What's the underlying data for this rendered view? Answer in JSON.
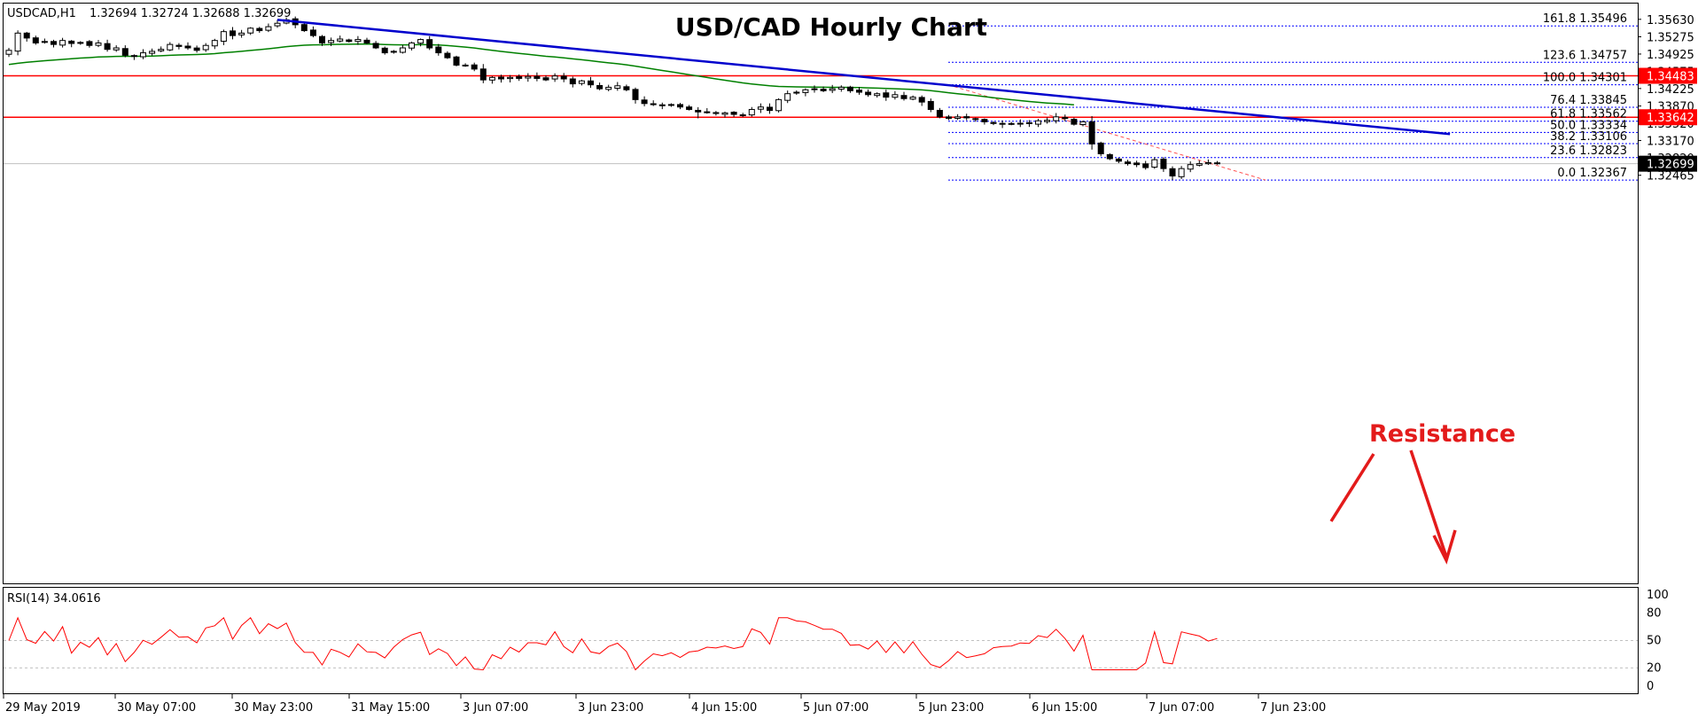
{
  "header": {
    "symbol": "USDCAD,H1",
    "ohlc": "1.32694 1.32724 1.32688 1.32699"
  },
  "chart_data": {
    "type": "candlestick",
    "title": "USD/CAD Hourly Chart",
    "price_axis": {
      "ylim": [
        1.2418,
        1.3595
      ],
      "tick_values": [
        1.3563,
        1.35275,
        1.34925,
        1.34575,
        1.34225,
        1.3387,
        1.3352,
        1.3317,
        1.3282,
        1.32465
      ],
      "tick_labels": [
        "1.35630",
        "1.35275",
        "1.34925",
        "1.34575",
        "1.34225",
        "1.33870",
        "1.33520",
        "1.33170",
        "1.32820",
        "1.32465"
      ]
    },
    "time_axis": {
      "labels": [
        "29 May 2019",
        "30 May 07:00",
        "30 May 23:00",
        "31 May 15:00",
        "3 Jun 07:00",
        "3 Jun 23:00",
        "4 Jun 15:00",
        "5 Jun 07:00",
        "5 Jun 23:00",
        "6 Jun 15:00",
        "7 Jun 07:00",
        "7 Jun 23:00"
      ]
    },
    "horizontal_levels": [
      {
        "value": 1.34483,
        "label": "1.34483",
        "color": "#ff0000"
      },
      {
        "value": 1.33642,
        "label": "1.33642",
        "color": "#ff0000"
      }
    ],
    "current_price": {
      "value": 1.32699,
      "label": "1.32699"
    },
    "fibonacci": [
      {
        "ratio": "161.8",
        "value": 1.35496,
        "label": "161.8 1.35496"
      },
      {
        "ratio": "123.6",
        "value": 1.34757,
        "label": "123.6 1.34757"
      },
      {
        "ratio": "100.0",
        "value": 1.34301,
        "label": "100.0 1.34301"
      },
      {
        "ratio": "76.4",
        "value": 1.33845,
        "label": "76.4 1.33845"
      },
      {
        "ratio": "61.8",
        "value": 1.33562,
        "label": "61.8 1.33562"
      },
      {
        "ratio": "50.0",
        "value": 1.33334,
        "label": "50.0 1.33334"
      },
      {
        "ratio": "38.2",
        "value": 1.33106,
        "label": "38.2 1.33106"
      },
      {
        "ratio": "23.6",
        "value": 1.32823,
        "label": "23.6 1.32823"
      },
      {
        "ratio": "0.0",
        "value": 1.32367,
        "label": "0.0 1.32367"
      }
    ],
    "close_series": [
      1.35,
      1.3535,
      1.3525,
      1.3515,
      1.3518,
      1.3512,
      1.352,
      1.3514,
      1.3516,
      1.351,
      1.3515,
      1.3502,
      1.3505,
      1.349,
      1.3488,
      1.3495,
      1.3498,
      1.3502,
      1.3512,
      1.3508,
      1.3505,
      1.35,
      1.351,
      1.352,
      1.3538,
      1.353,
      1.3535,
      1.3545,
      1.354,
      1.3548,
      1.3555,
      1.3562,
      1.3552,
      1.354,
      1.353,
      1.3515,
      1.352,
      1.3523,
      1.3518,
      1.3522,
      1.3515,
      1.3505,
      1.3495,
      1.3498,
      1.3505,
      1.3515,
      1.3522,
      1.3505,
      1.3495,
      1.3485,
      1.347,
      1.347,
      1.3462,
      1.344,
      1.3445,
      1.3442,
      1.3445,
      1.3443,
      1.3447,
      1.3443,
      1.344,
      1.3448,
      1.3442,
      1.3432,
      1.3438,
      1.343,
      1.3422,
      1.3425,
      1.3428,
      1.342,
      1.34,
      1.3392,
      1.339,
      1.3388,
      1.339,
      1.3385,
      1.338,
      1.3375,
      1.3374,
      1.3372,
      1.3373,
      1.337,
      1.3368,
      1.338,
      1.3385,
      1.3378,
      1.34,
      1.3412,
      1.3415,
      1.342,
      1.3422,
      1.3418,
      1.3422,
      1.3425,
      1.3418,
      1.3415,
      1.341,
      1.3412,
      1.3405,
      1.341,
      1.3402,
      1.3405,
      1.3395,
      1.338,
      1.3365,
      1.3362,
      1.3365,
      1.3363,
      1.336,
      1.3355,
      1.3352,
      1.335,
      1.335,
      1.3352,
      1.3352,
      1.3357,
      1.3358,
      1.3365,
      1.3362,
      1.335,
      1.3355,
      1.331,
      1.329,
      1.328,
      1.3275,
      1.327,
      1.3268,
      1.3262,
      1.3278,
      1.326,
      1.3245,
      1.326,
      1.3268,
      1.327,
      1.3272,
      1.327
    ],
    "ema": {
      "color": "#008000"
    },
    "trendline": {
      "color": "#0000cd",
      "from": [
        1.3562,
        30
      ],
      "to": [
        1.333,
        161
      ]
    },
    "annotation": {
      "text": "Resistance",
      "color": "#e31b1b"
    },
    "rsi": {
      "label": "RSI(14) 34.0616",
      "ylim": [
        0,
        100
      ],
      "levels": [
        {
          "value": 100,
          "label": "100"
        },
        {
          "value": 80,
          "label": "80"
        },
        {
          "value": 50,
          "label": "50"
        },
        {
          "value": 20,
          "label": "20"
        },
        {
          "value": 0,
          "label": "0"
        }
      ]
    }
  }
}
